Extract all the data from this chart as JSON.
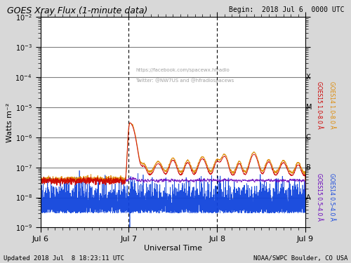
{
  "title": "GOES Xray Flux (1-minute data)",
  "begin_label": "Begin:  2018 Jul 6  0000 UTC",
  "updated_label": "Updated 2018 Jul  8 18:23:11 UTC",
  "agency_label": "NOAA/SWPC Boulder, CO USA",
  "xlabel": "Universal Time",
  "ylabel": "Watts m⁻²",
  "xlim": [
    0,
    72
  ],
  "xtick_positions": [
    0,
    24,
    48,
    72
  ],
  "xtick_labels": [
    "Jul 6",
    "Jul 7",
    "Jul 8",
    "Jul 9"
  ],
  "ytick_positions": [
    1e-09,
    1e-08,
    1e-07,
    1e-06,
    1e-05,
    0.0001,
    0.001,
    0.01
  ],
  "watermark_line1": "https://facebook.com/spacewx.hfradio",
  "watermark_line2": "Twitter: @NW7US and @hfradiospacews",
  "right_label_1_8_goes15": "GOES15 1.0-8.0 Å",
  "right_label_1_8_goes14": "GOES14 1.0-8.0 Å",
  "right_label_0_4_goes15": "GOES15 0.5-4.0 Å",
  "right_label_0_4_goes14": "GOES14 0.5-4.0 Å",
  "color_goes15_long": "#cc0000",
  "color_goes14_long": "#dd8800",
  "color_goes15_short": "#6600bb",
  "color_goes14_short": "#1144dd",
  "dashed_line_x": [
    24,
    48
  ],
  "background_color": "#d8d8d8",
  "plot_bg_color": "#ffffff",
  "flare_labels": [
    "A",
    "B",
    "C",
    "M",
    "X"
  ],
  "flare_values": [
    1e-08,
    1e-07,
    1e-06,
    1e-05,
    0.0001
  ]
}
